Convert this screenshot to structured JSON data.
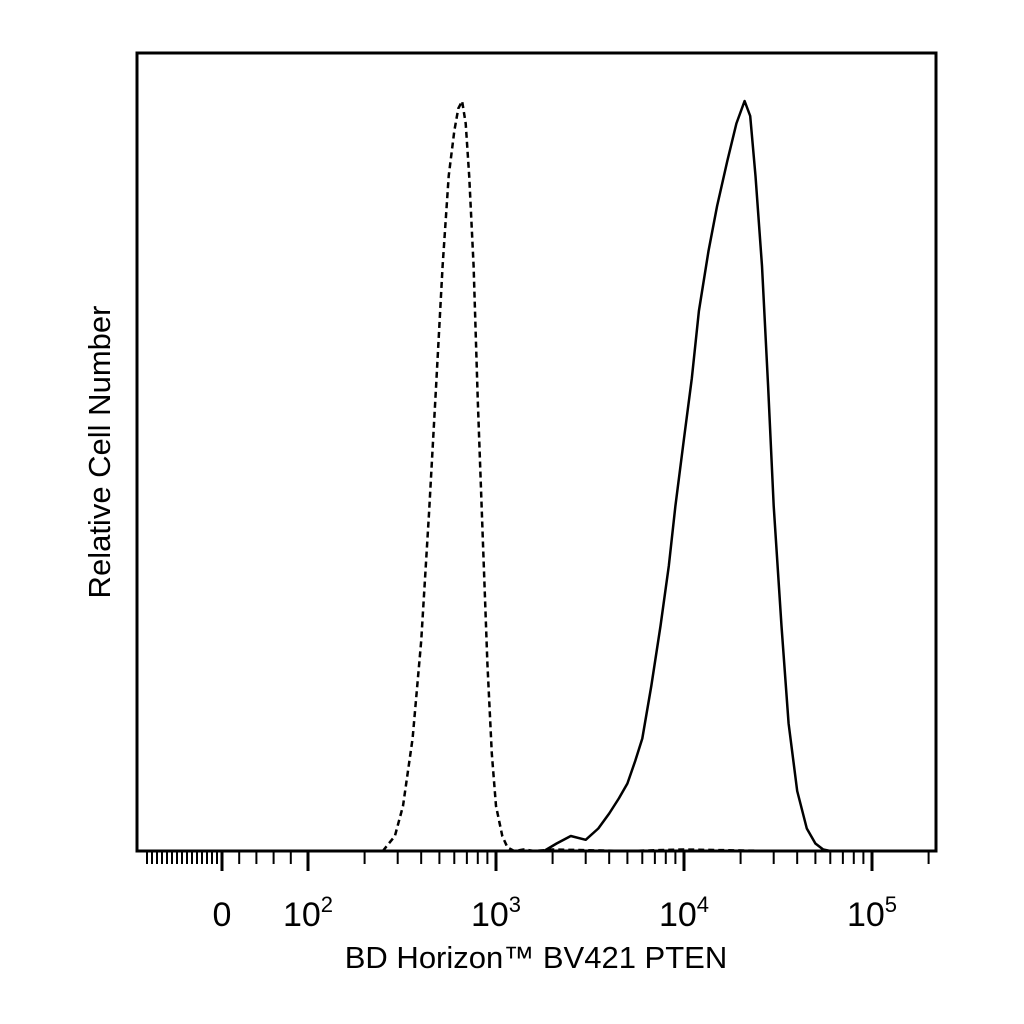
{
  "chart_data": {
    "type": "line",
    "xlabel": "BD Horizon™ BV421 PTEN",
    "ylabel": "Relative Cell Number",
    "x_scale": "biexponential (log with linear region around 0)",
    "xlim": [
      -300,
      250000
    ],
    "ylim": [
      0,
      1
    ],
    "y_ticks": "none",
    "grid": false,
    "legend": "none",
    "x_tick_labels": [
      {
        "value": 0,
        "base": "0",
        "exp": ""
      },
      {
        "value": 100,
        "base": "10",
        "exp": "2"
      },
      {
        "value": 1000,
        "base": "10",
        "exp": "3"
      },
      {
        "value": 10000,
        "base": "10",
        "exp": "4"
      },
      {
        "value": 100000,
        "base": "10",
        "exp": "5"
      }
    ],
    "series": [
      {
        "style": "dashed",
        "color": "#000000",
        "x": [
          250,
          290,
          320,
          360,
          400,
          440,
          480,
          520,
          560,
          600,
          630,
          660,
          690,
          720,
          760,
          800,
          850,
          900,
          950,
          1000,
          1080,
          1150,
          1250,
          1400,
          1600,
          2000,
          5000,
          10000,
          30000,
          60000
        ],
        "y": [
          0.0,
          0.02,
          0.06,
          0.15,
          0.28,
          0.45,
          0.62,
          0.78,
          0.9,
          0.96,
          0.99,
          1.0,
          0.97,
          0.9,
          0.78,
          0.6,
          0.42,
          0.25,
          0.13,
          0.06,
          0.02,
          0.005,
          0.0,
          0.002,
          0.0,
          0.002,
          0.0,
          0.002,
          0.0,
          0.0
        ]
      },
      {
        "style": "solid",
        "color": "#000000",
        "x": [
          1800,
          2100,
          2500,
          3000,
          3500,
          4000,
          4500,
          5000,
          5500,
          6000,
          6700,
          7500,
          8300,
          9000,
          10000,
          11000,
          12000,
          13500,
          15000,
          17000,
          19000,
          21000,
          22500,
          24000,
          26000,
          28000,
          30000,
          33000,
          36000,
          40000,
          45000,
          50000,
          55000,
          60000
        ],
        "y": [
          0.0,
          0.01,
          0.02,
          0.015,
          0.03,
          0.05,
          0.07,
          0.09,
          0.12,
          0.15,
          0.22,
          0.3,
          0.38,
          0.46,
          0.55,
          0.63,
          0.72,
          0.8,
          0.86,
          0.92,
          0.97,
          1.0,
          0.98,
          0.9,
          0.78,
          0.62,
          0.46,
          0.3,
          0.17,
          0.08,
          0.03,
          0.01,
          0.002,
          0.0
        ]
      }
    ]
  }
}
